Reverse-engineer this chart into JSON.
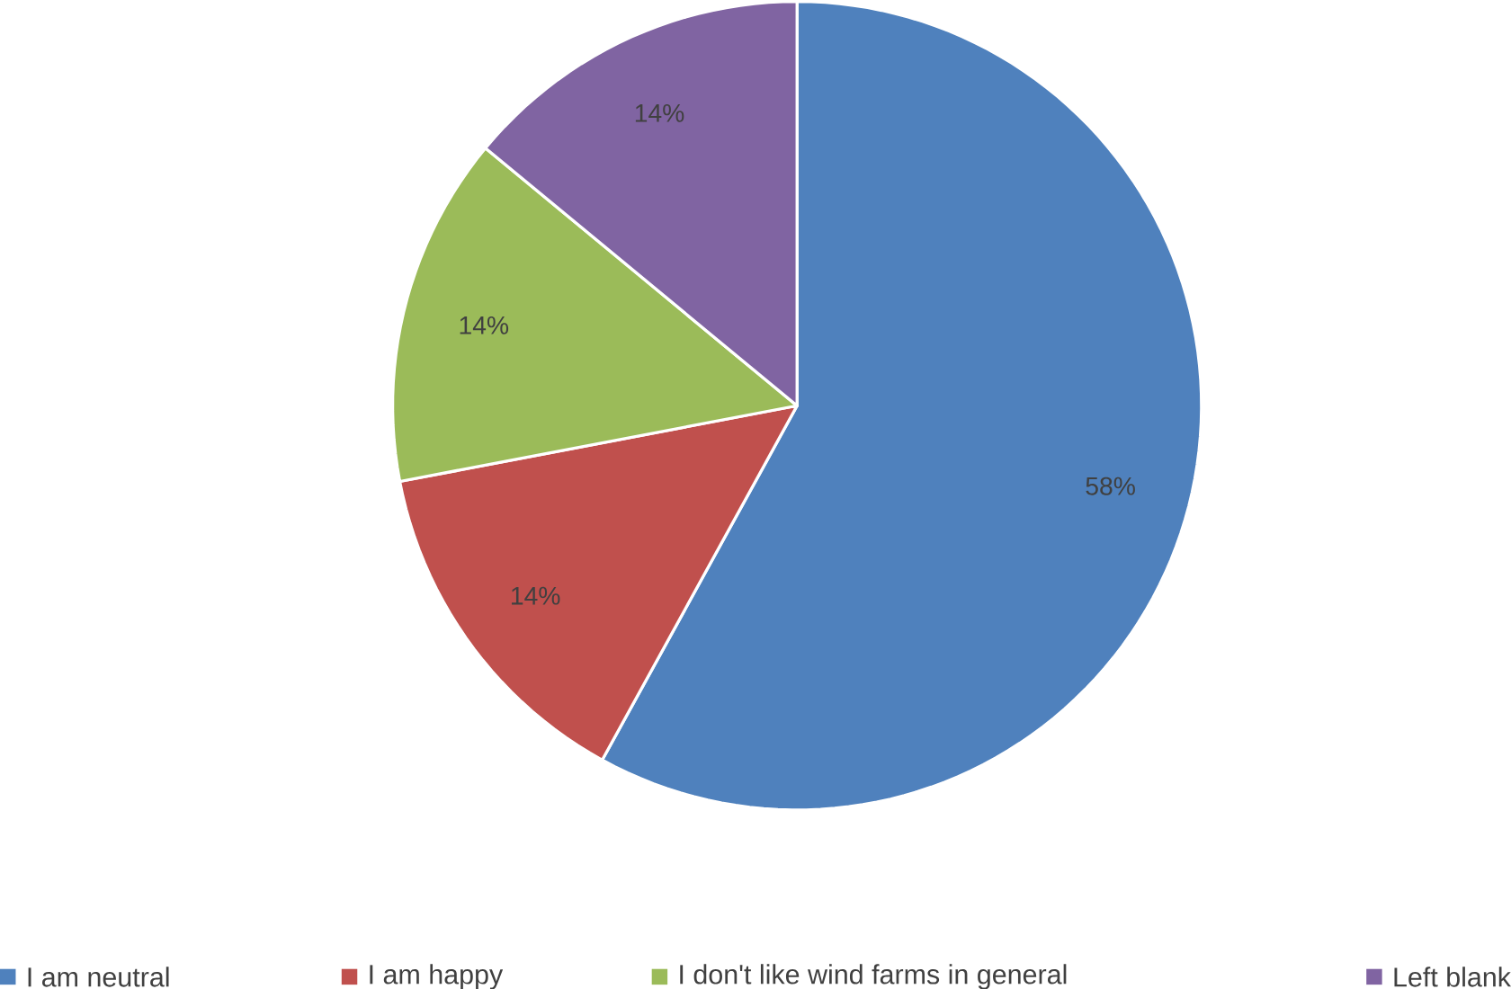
{
  "chart_data": {
    "type": "pie",
    "categories": [
      "I am neutral",
      "I am happy",
      "I don't like wind farms in general",
      "Left blank"
    ],
    "values": [
      58,
      14,
      14,
      14
    ],
    "colors": [
      "#4f81bd",
      "#c0504d",
      "#9bbb59",
      "#8064a2"
    ],
    "value_labels": [
      "58%",
      "14%",
      "14%",
      "14%"
    ],
    "legend": "bottom"
  }
}
